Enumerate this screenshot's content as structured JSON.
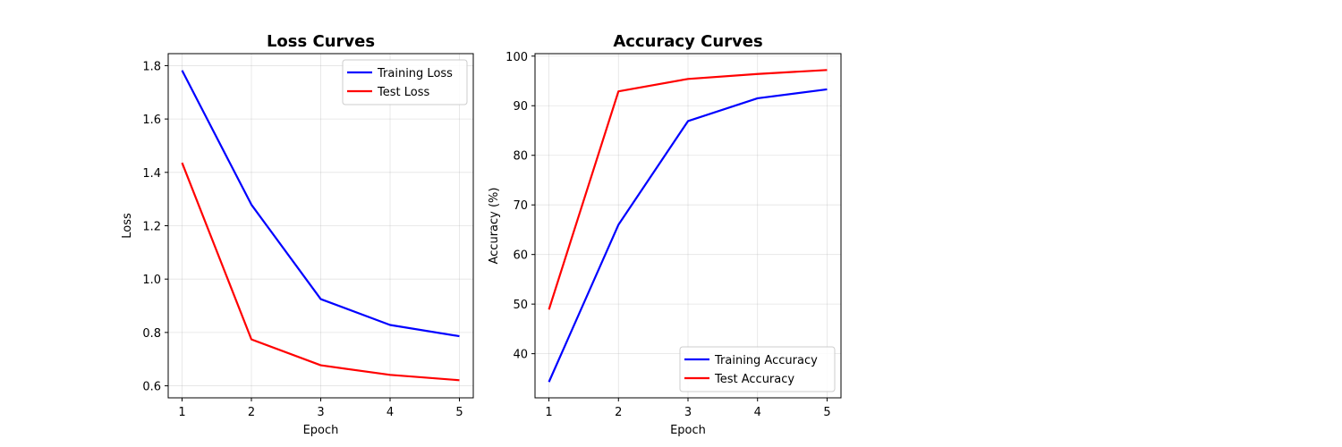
{
  "chart_data": [
    {
      "type": "line",
      "title": "Loss Curves",
      "xlabel": "Epoch",
      "ylabel": "Loss",
      "x": [
        1,
        2,
        3,
        4,
        5
      ],
      "xlim": [
        0.8,
        5.2
      ],
      "ylim": [
        0.555,
        1.845
      ],
      "yticks": [
        0.6,
        0.8,
        1.0,
        1.2,
        1.4,
        1.6,
        1.8
      ],
      "ytick_labels": [
        "0.6",
        "0.8",
        "1.0",
        "1.2",
        "1.4",
        "1.6",
        "1.8"
      ],
      "xtick_labels": [
        "1",
        "2",
        "3",
        "4",
        "5"
      ],
      "grid": true,
      "legend_position": "top-right",
      "series": [
        {
          "name": "Training Loss",
          "color": "#0000ff",
          "values": [
            1.782,
            1.279,
            0.925,
            0.828,
            0.786
          ]
        },
        {
          "name": "Test Loss",
          "color": "#ff0000",
          "values": [
            1.436,
            0.774,
            0.677,
            0.641,
            0.621
          ]
        }
      ]
    },
    {
      "type": "line",
      "title": "Accuracy Curves",
      "xlabel": "Epoch",
      "ylabel": "Accuracy (%)",
      "x": [
        1,
        2,
        3,
        4,
        5
      ],
      "xlim": [
        0.8,
        5.2
      ],
      "ylim": [
        31.1,
        100.5
      ],
      "yticks": [
        40,
        50,
        60,
        70,
        80,
        90,
        100
      ],
      "ytick_labels": [
        "40",
        "50",
        "60",
        "70",
        "80",
        "90",
        "100"
      ],
      "xtick_labels": [
        "1",
        "2",
        "3",
        "4",
        "5"
      ],
      "grid": true,
      "legend_position": "bottom-right",
      "series": [
        {
          "name": "Training Accuracy",
          "color": "#0000ff",
          "values": [
            34.3,
            66.0,
            86.9,
            91.5,
            93.3
          ]
        },
        {
          "name": "Test Accuracy",
          "color": "#ff0000",
          "values": [
            48.9,
            92.9,
            95.4,
            96.4,
            97.2
          ]
        }
      ]
    }
  ]
}
